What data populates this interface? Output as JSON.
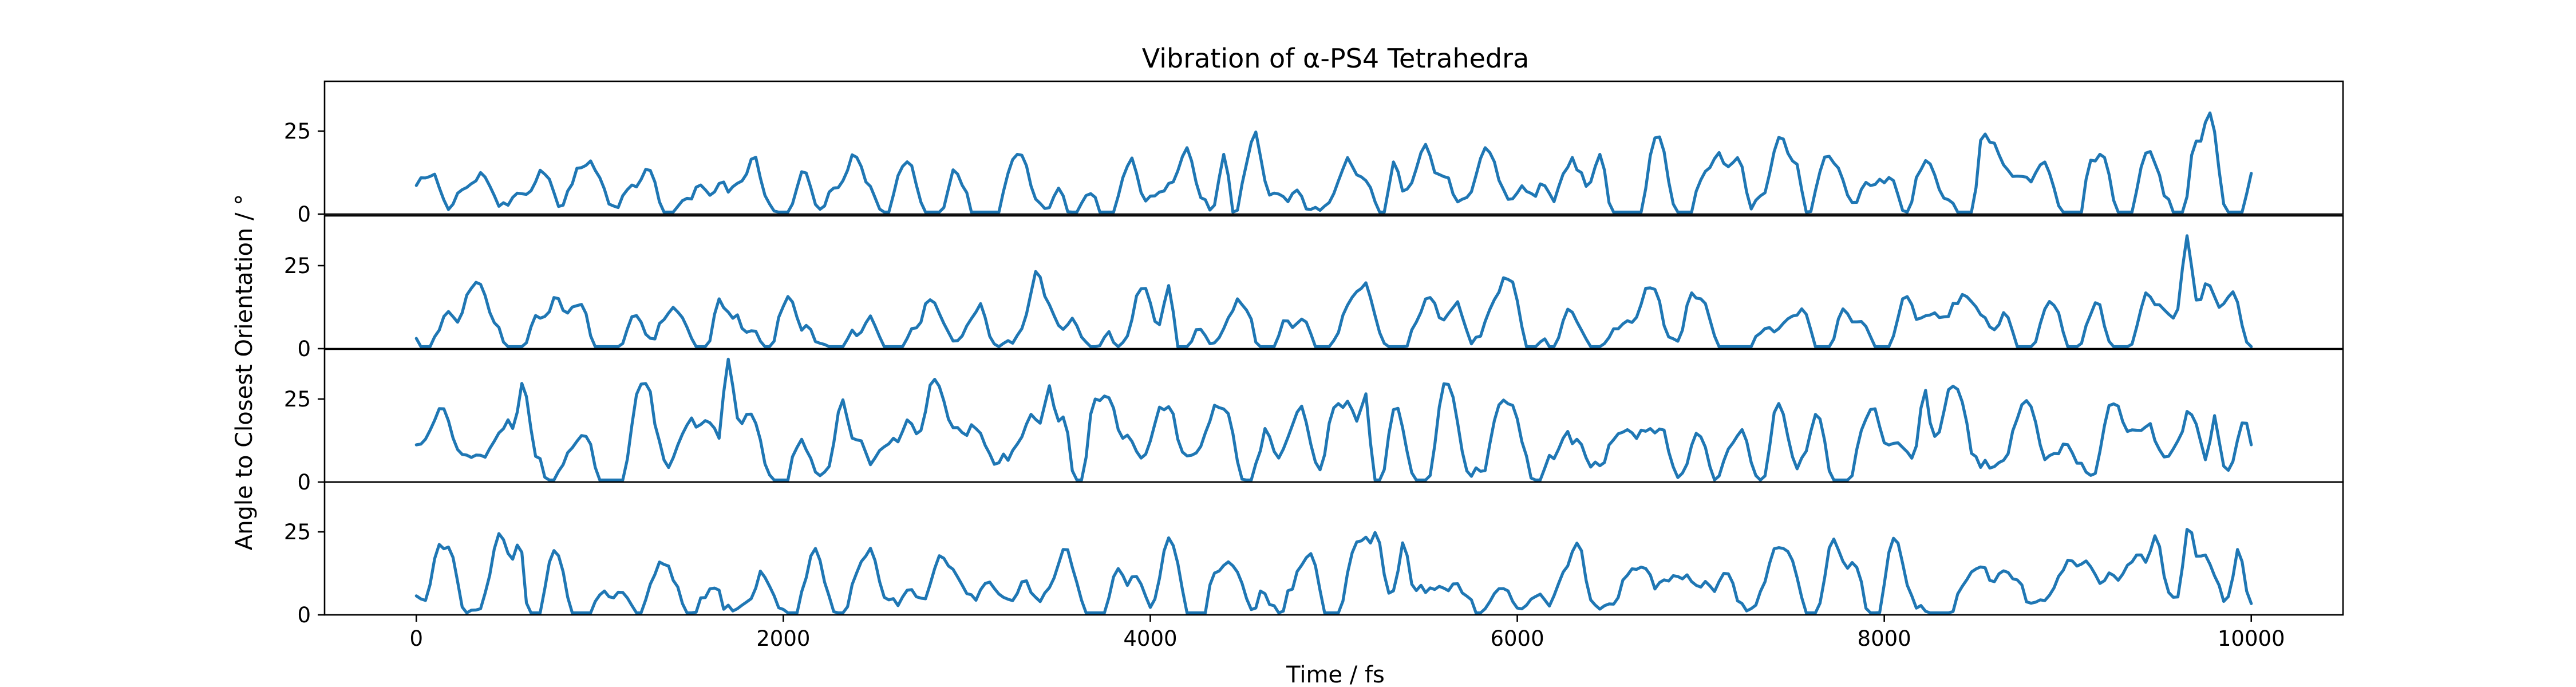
{
  "figure": {
    "title": "Vibration of α-PS4 Tetrahedra",
    "xlabel": "Time / fs",
    "ylabel": "Angle to Closest Orientation / °"
  },
  "chart_data": {
    "type": "line",
    "title": "Vibration of α-PS4 Tetrahedra",
    "xlabel": "Time / fs",
    "ylabel": "Angle to Closest Orientation / °",
    "xlim": [
      -500,
      10500
    ],
    "x_ticks": [
      0,
      2000,
      4000,
      6000,
      8000,
      10000
    ],
    "x_tick_labels": [
      "0",
      "2000",
      "4000",
      "6000",
      "8000",
      "10000"
    ],
    "line_color": "#1f77b4",
    "grid": false,
    "legend": "none",
    "x_sampling": {
      "start": 0,
      "stop": 10000,
      "step": 25
    },
    "panels": [
      {
        "ylim": [
          0,
          40
        ],
        "y_ticks": [
          0,
          25
        ],
        "y_tick_labels": [
          "0",
          "25"
        ],
        "baseline": 8,
        "amplitude": 4.5,
        "seed": 11,
        "peaks": [
          {
            "x": 4570,
            "y": 25
          },
          {
            "x": 8540,
            "y": 25
          },
          {
            "x": 9700,
            "y": 22
          },
          {
            "x": 4200,
            "y": 20
          },
          {
            "x": 5500,
            "y": 21
          },
          {
            "x": 4400,
            "y": 18
          },
          {
            "x": 5330,
            "y": 16
          },
          {
            "x": 6450,
            "y": 18
          },
          {
            "x": 7200,
            "y": 17
          },
          {
            "x": 7500,
            "y": 16
          },
          {
            "x": 9150,
            "y": 16
          }
        ]
      },
      {
        "ylim": [
          0,
          40
        ],
        "y_ticks": [
          0,
          25
        ],
        "y_tick_labels": [
          "0",
          "25"
        ],
        "baseline": 6,
        "amplitude": 4.5,
        "seed": 23,
        "peaks": [
          {
            "x": 9650,
            "y": 34
          },
          {
            "x": 9760,
            "y": 20
          },
          {
            "x": 330,
            "y": 20
          },
          {
            "x": 5170,
            "y": 20
          },
          {
            "x": 4100,
            "y": 19
          },
          {
            "x": 760,
            "y": 16
          },
          {
            "x": 1650,
            "y": 15
          },
          {
            "x": 7000,
            "y": 15
          }
        ]
      },
      {
        "ylim": [
          0,
          40
        ],
        "y_ticks": [
          0,
          25
        ],
        "y_tick_labels": [
          "0",
          "25"
        ],
        "baseline": 11,
        "amplitude": 5.5,
        "seed": 37,
        "peaks": [
          {
            "x": 1700,
            "y": 37
          },
          {
            "x": 580,
            "y": 30
          },
          {
            "x": 2820,
            "y": 31
          },
          {
            "x": 3450,
            "y": 29
          },
          {
            "x": 3700,
            "y": 25
          },
          {
            "x": 5170,
            "y": 27
          },
          {
            "x": 8220,
            "y": 28
          },
          {
            "x": 2320,
            "y": 25
          },
          {
            "x": 9800,
            "y": 20
          },
          {
            "x": 4400,
            "y": 22
          }
        ]
      },
      {
        "ylim": [
          0,
          40
        ],
        "y_ticks": [
          0,
          25
        ],
        "y_tick_labels": [
          "0",
          "25"
        ],
        "baseline": 8,
        "amplitude": 4.5,
        "seed": 53,
        "peaks": [
          {
            "x": 9660,
            "y": 27
          },
          {
            "x": 5230,
            "y": 25
          },
          {
            "x": 7720,
            "y": 23
          },
          {
            "x": 9480,
            "y": 24
          },
          {
            "x": 5380,
            "y": 22
          },
          {
            "x": 560,
            "y": 22
          },
          {
            "x": 9930,
            "y": 20
          },
          {
            "x": 7450,
            "y": 20
          }
        ]
      }
    ]
  }
}
